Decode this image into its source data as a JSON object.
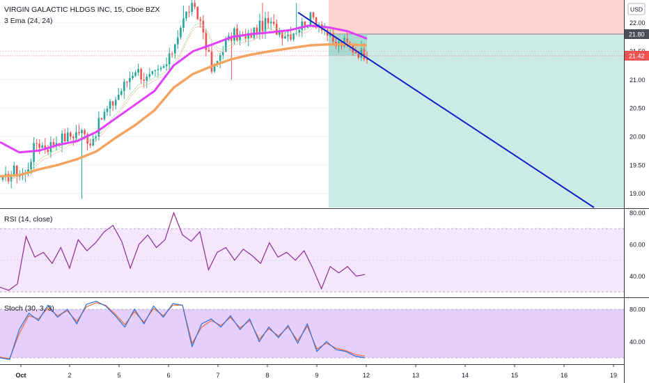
{
  "header": {
    "symbol_line": "VIRGIN GALACTIC HLDGS INC, 15, Cboe BZX",
    "ema_label": "3 Ema (24, 24)",
    "currency": "USD"
  },
  "rsi_panel": {
    "label": "RSI (14, close)"
  },
  "stoch_panel": {
    "label": "Stoch (30, 3, 3)"
  },
  "colors": {
    "up_candle": "#26a69a",
    "down_candle": "#ef5350",
    "ema_fast": "#e040fb",
    "ema_slow": "#f4a460",
    "trend_line": "#0d1fc8",
    "stop_zone": "#fbd3d0",
    "target_zone": "#cdebe6",
    "rsi_line": "#8e2a8e",
    "rsi_band": "#f3e6fd",
    "stoch_k": "#2a6fdb",
    "stoch_d": "#ef6c3a",
    "stoch_band": "#e7cffb"
  },
  "chart_data": [
    {
      "type": "candlestick",
      "title": "VIRGIN GALACTIC HLDGS INC, 15, Cboe BZX",
      "ylim": [
        18.75,
        22.4
      ],
      "yticks": [
        "22.00",
        "21.50",
        "21.00",
        "20.50",
        "20.00",
        "19.50",
        "19.00"
      ],
      "price_badges": [
        {
          "value": "21.80",
          "kind": "level"
        },
        {
          "value": "21.42",
          "kind": "last"
        }
      ],
      "x_ticks": [
        "Oct",
        "2",
        "5",
        "6",
        "7",
        "8",
        "9",
        "12",
        "13",
        "14",
        "15",
        "16",
        "19"
      ],
      "price_path": [
        19.2,
        19.4,
        19.3,
        19.9,
        19.8,
        19.95,
        20.0,
        20.1,
        19.9,
        20.35,
        20.6,
        20.9,
        21.2,
        21.0,
        21.1,
        21.3,
        21.9,
        22.3,
        22.0,
        21.1,
        21.6,
        21.8,
        21.7,
        21.9,
        22.0,
        21.85,
        21.8,
        21.95,
        22.1,
        21.95,
        21.6,
        21.65,
        21.5,
        21.45
      ],
      "ema_fast": [
        19.9,
        19.72,
        19.75,
        19.85,
        19.92,
        20.08,
        20.32,
        20.56,
        20.8,
        21.25,
        21.5,
        21.62,
        21.75,
        21.8,
        21.83,
        21.87,
        21.95,
        21.92,
        21.85,
        21.72
      ],
      "ema_slow": [
        19.3,
        19.32,
        19.42,
        19.5,
        19.6,
        19.74,
        19.98,
        20.2,
        20.46,
        20.86,
        21.1,
        21.24,
        21.36,
        21.44,
        21.5,
        21.55,
        21.6,
        21.62,
        21.62,
        21.6
      ],
      "annotations": [
        "short position",
        "down trend line"
      ]
    },
    {
      "type": "line",
      "name": "RSI (14, close)",
      "ylim": [
        27,
        82
      ],
      "yticks": [
        "80.00",
        "60.00",
        "40.00"
      ],
      "band": [
        30,
        70
      ],
      "values": [
        33,
        31,
        35,
        65,
        52,
        55,
        48,
        58,
        45,
        63,
        56,
        61,
        68,
        72,
        62,
        45,
        60,
        66,
        58,
        63,
        80,
        66,
        62,
        68,
        44,
        55,
        58,
        50,
        57,
        53,
        48,
        61,
        52,
        55,
        50,
        56,
        45,
        32,
        46,
        42,
        46,
        40,
        41
      ]
    },
    {
      "type": "line",
      "name": "Stoch (30, 3, 3)",
      "ylim": [
        13,
        93
      ],
      "yticks": [
        "80.00",
        "40.00"
      ],
      "band": [
        20,
        80
      ],
      "k_values": [
        20,
        18,
        55,
        75,
        66,
        85,
        70,
        80,
        62,
        86,
        90,
        84,
        72,
        58,
        80,
        62,
        84,
        70,
        87,
        85,
        34,
        62,
        68,
        58,
        72,
        55,
        68,
        40,
        58,
        45,
        60,
        38,
        62,
        28,
        40,
        30,
        28,
        22,
        20
      ],
      "d_values": [
        21,
        19,
        50,
        72,
        68,
        82,
        72,
        78,
        65,
        83,
        88,
        85,
        74,
        61,
        77,
        64,
        81,
        72,
        85,
        85,
        38,
        58,
        66,
        60,
        70,
        57,
        66,
        43,
        56,
        47,
        58,
        41,
        59,
        31,
        38,
        32,
        29,
        24,
        22
      ]
    }
  ]
}
